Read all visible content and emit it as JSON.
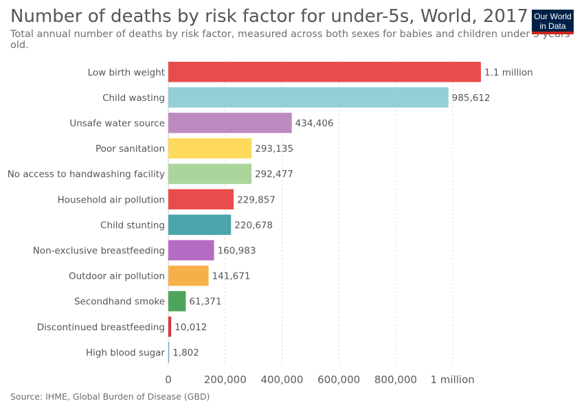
{
  "header": {
    "title": "Number of deaths by risk factor for under-5s, World, 2017",
    "subtitle": "Total annual number of deaths by risk factor, measured across both sexes for babies and children under 5 years old.",
    "logo_line1": "Our World",
    "logo_line2": "in Data"
  },
  "footer": {
    "source": "Source: IHME, Global Burden of Disease (GBD)"
  },
  "chart_data": {
    "type": "bar",
    "orientation": "horizontal",
    "title": "Number of deaths by risk factor for under-5s, World, 2017",
    "categories": [
      "Low birth weight",
      "Child wasting",
      "Unsafe water source",
      "Poor sanitation",
      "No access to handwashing facility",
      "Household air pollution",
      "Child stunting",
      "Non-exclusive breastfeeding",
      "Outdoor air pollution",
      "Secondhand smoke",
      "Discontinued breastfeeding",
      "High blood sugar"
    ],
    "values": [
      1100000,
      985612,
      434406,
      293135,
      292477,
      229857,
      220678,
      160983,
      141671,
      61371,
      10012,
      1802
    ],
    "value_labels": [
      "1.1 million",
      "985,612",
      "434,406",
      "293,135",
      "292,477",
      "229,857",
      "220,678",
      "160,983",
      "141,671",
      "61,371",
      "10,012",
      "1,802"
    ],
    "colors": [
      "#e94c4a",
      "#93cfd6",
      "#bc8ac0",
      "#fdd95c",
      "#acd59c",
      "#e94c4a",
      "#4ba5ad",
      "#b46cc5",
      "#f6b04a",
      "#4ea45a",
      "#d03c3e",
      "#7a9cc8"
    ],
    "xlim": [
      0,
      1100000
    ],
    "xticks": [
      0,
      200000,
      400000,
      600000,
      800000,
      1000000
    ],
    "xtick_labels": [
      "0",
      "200,000",
      "400,000",
      "600,000",
      "800,000",
      "1 million"
    ],
    "grid": "vertical dashed",
    "legend": "none"
  }
}
